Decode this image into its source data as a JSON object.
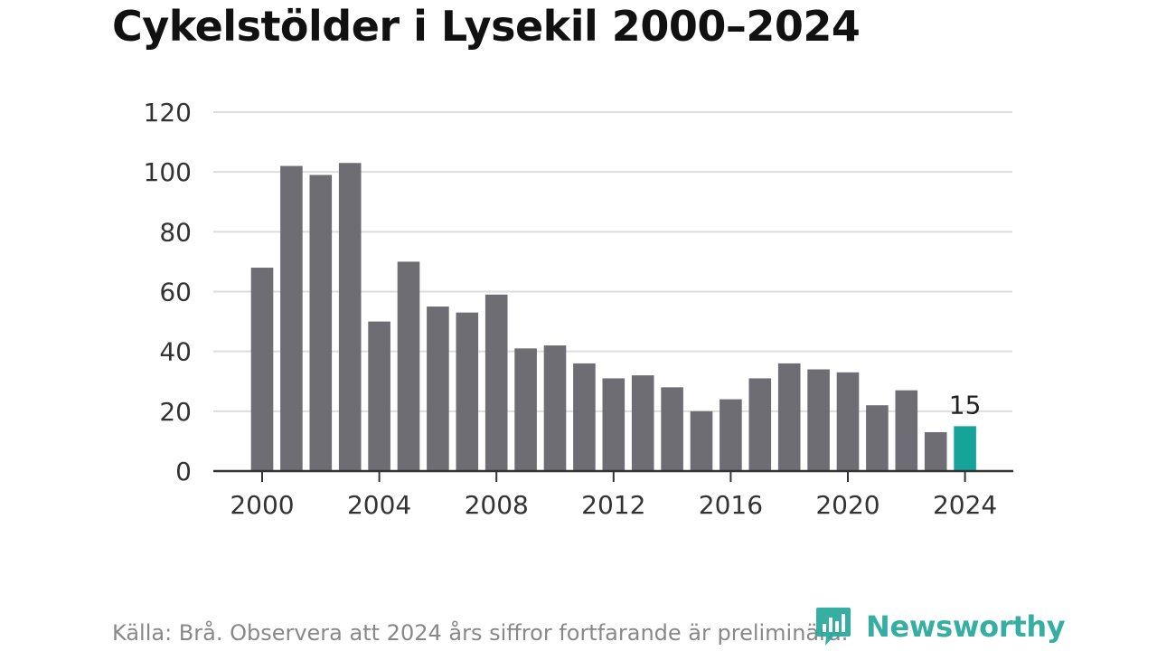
{
  "chart_data": {
    "type": "bar",
    "title": "Cykelstölder i Lysekil 2000–2024",
    "xlabel": "",
    "ylabel": "",
    "x": [
      2000,
      2001,
      2002,
      2003,
      2004,
      2005,
      2006,
      2007,
      2008,
      2009,
      2010,
      2011,
      2012,
      2013,
      2014,
      2015,
      2016,
      2017,
      2018,
      2019,
      2020,
      2021,
      2022,
      2023,
      2024
    ],
    "values": [
      68,
      102,
      99,
      103,
      50,
      70,
      55,
      53,
      59,
      41,
      42,
      36,
      31,
      32,
      28,
      20,
      24,
      31,
      36,
      34,
      33,
      22,
      27,
      13,
      15
    ],
    "ylim": [
      0,
      120
    ],
    "y_ticks": [
      0,
      20,
      40,
      60,
      80,
      100,
      120
    ],
    "x_ticks": [
      2000,
      2004,
      2008,
      2012,
      2016,
      2020,
      2024
    ],
    "grid": true,
    "legend": "none",
    "highlight": {
      "index": 24,
      "label": "15"
    },
    "colors": {
      "bar": "#6e6d73",
      "highlight": "#16a399",
      "grid": "#dddddd",
      "axis": "#333333",
      "text": "#333333"
    }
  },
  "footer": {
    "source": "Källa: Brå. Observera att 2024 års siffror fortfarande är preliminära."
  },
  "brand": {
    "name": "Newsworthy",
    "icon": "newsworthy-logo-icon",
    "color": "#25a99b"
  }
}
